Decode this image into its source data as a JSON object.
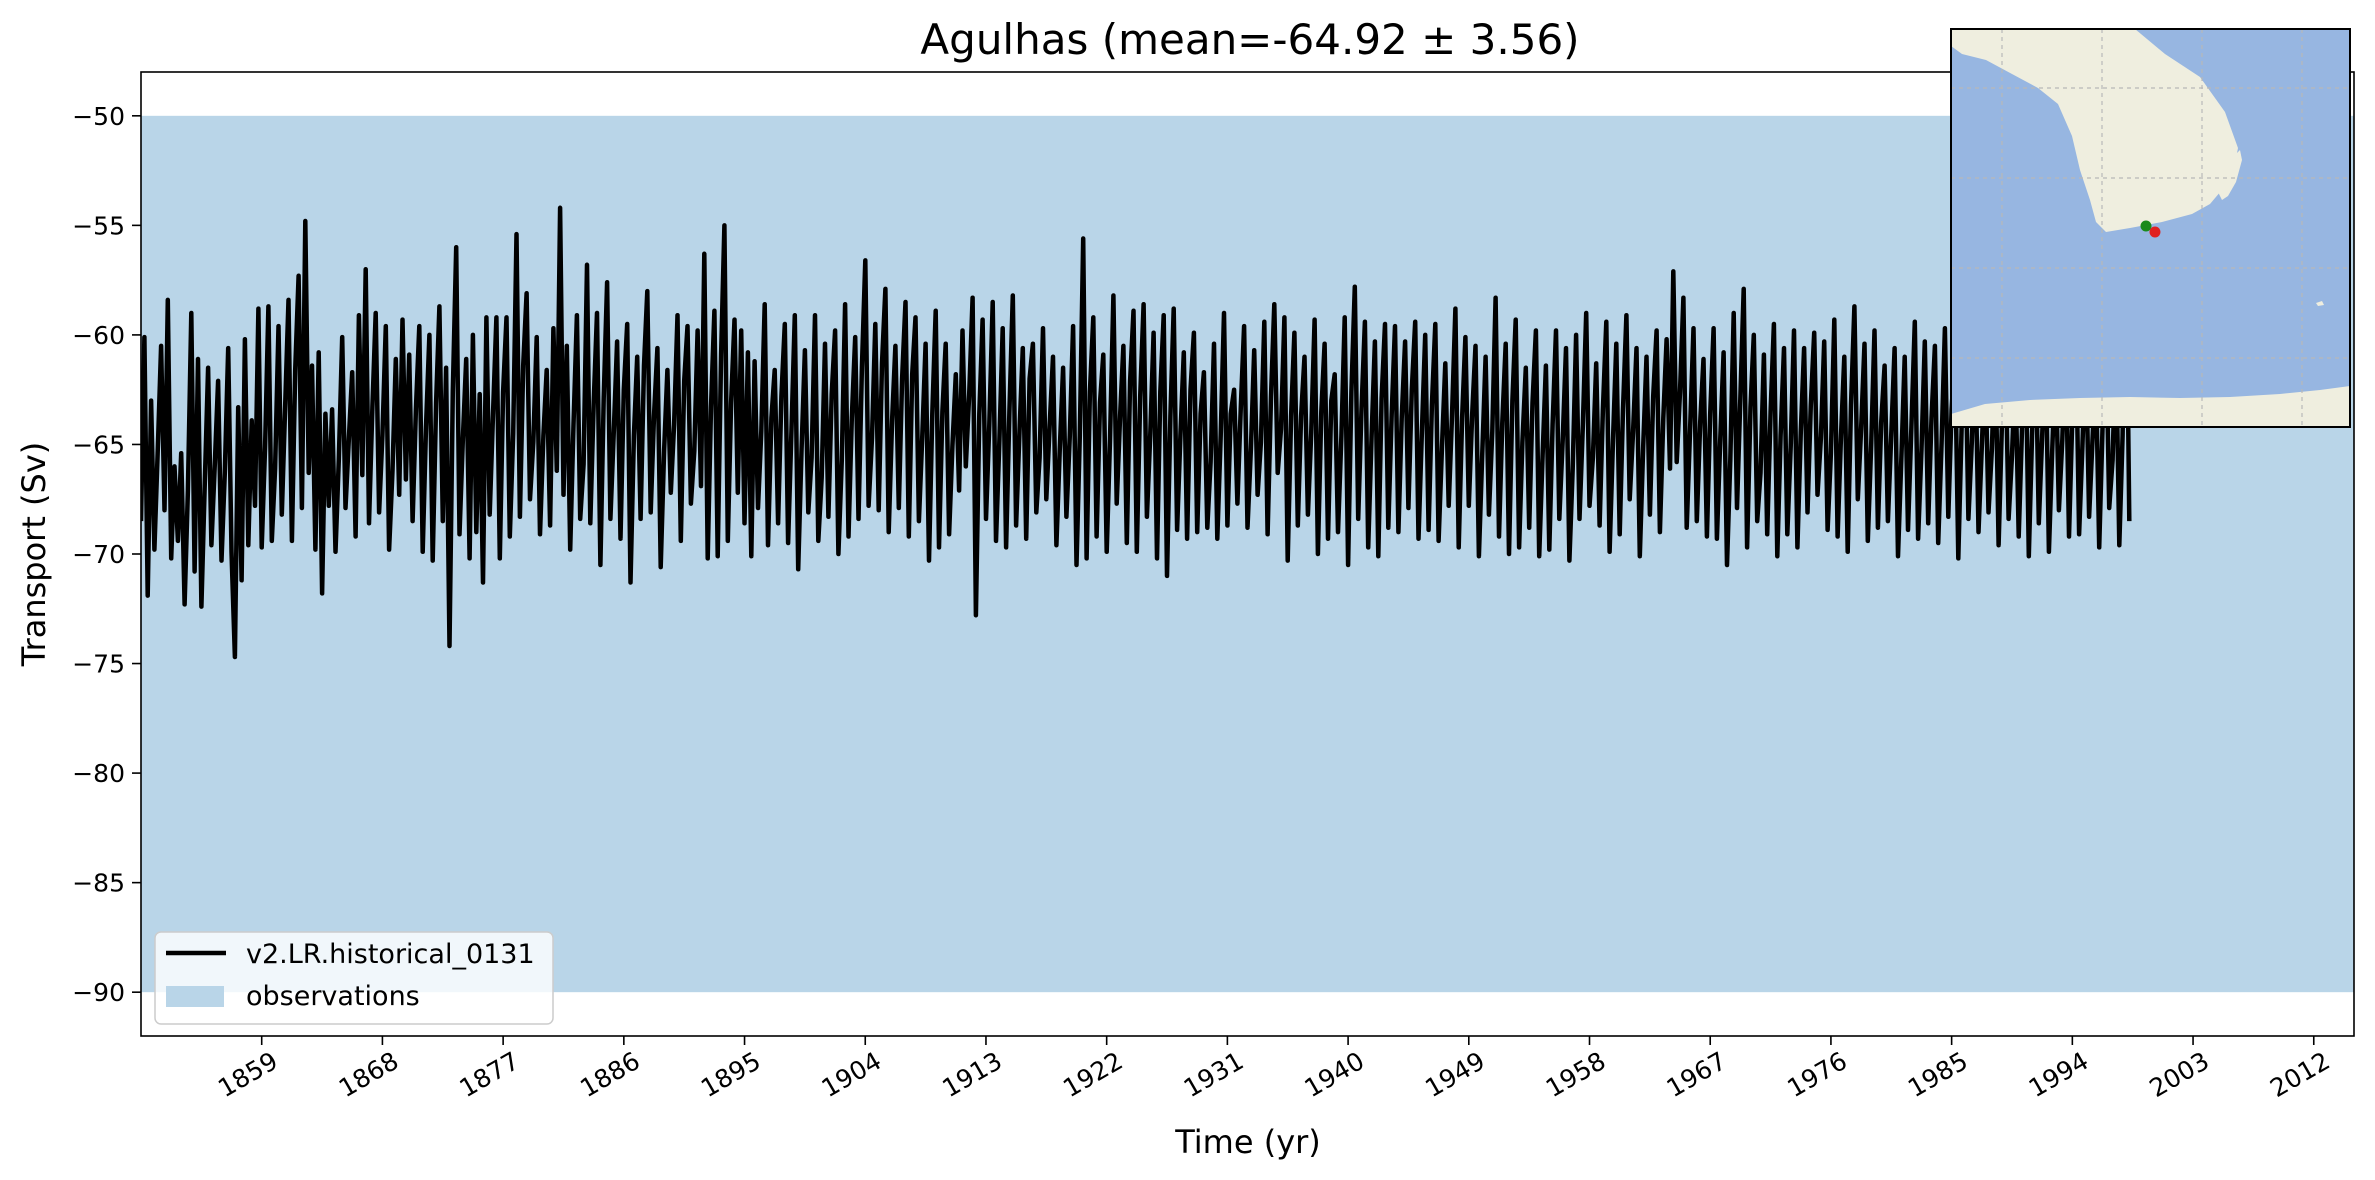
{
  "chart_data": {
    "type": "line",
    "title": "Agulhas (mean=-64.92 ± 3.56)",
    "xlabel": "Time (yr)",
    "ylabel": "Transport (Sv)",
    "xlim": [
      1850,
      2015
    ],
    "ylim": [
      -92,
      -48
    ],
    "x_ticks": [
      1859,
      1868,
      1877,
      1886,
      1895,
      1904,
      1913,
      1922,
      1931,
      1940,
      1949,
      1958,
      1967,
      1976,
      1985,
      1994,
      2003,
      2012
    ],
    "y_ticks": [
      -50,
      -55,
      -60,
      -65,
      -70,
      -75,
      -80,
      -85,
      -90
    ],
    "grid": false,
    "legend_position": "lower-left",
    "observations_band": {
      "label": "observations",
      "y_min": -90,
      "y_max": -50,
      "color": "#b9d5e8"
    },
    "series": [
      {
        "name": "v2.LR.historical_0131",
        "color": "#000000",
        "note_resolution": "monthly model output, shown as sampled approximation",
        "x_start": 1850.0,
        "x_step": 0.25,
        "values": [
          -68.5,
          -60.1,
          -71.9,
          -63.0,
          -69.8,
          -65.2,
          -60.5,
          -68.0,
          -58.4,
          -70.2,
          -66.0,
          -69.4,
          -65.4,
          -72.3,
          -67.1,
          -59.0,
          -70.8,
          -61.1,
          -72.4,
          -66.9,
          -61.5,
          -69.6,
          -65.9,
          -62.1,
          -70.3,
          -66.3,
          -60.6,
          -69.9,
          -74.7,
          -63.3,
          -71.2,
          -60.2,
          -69.6,
          -63.9,
          -67.8,
          -58.8,
          -69.7,
          -65.1,
          -58.7,
          -69.4,
          -66.1,
          -59.6,
          -68.2,
          -63.2,
          -58.4,
          -69.4,
          -61.6,
          -57.3,
          -67.9,
          -54.8,
          -66.3,
          -61.4,
          -69.8,
          -60.8,
          -71.8,
          -63.6,
          -67.8,
          -63.4,
          -69.9,
          -65.7,
          -60.1,
          -67.9,
          -64.7,
          -61.7,
          -69.2,
          -59.1,
          -66.4,
          -57.0,
          -68.6,
          -63.3,
          -59.0,
          -68.1,
          -64.6,
          -59.6,
          -69.8,
          -66.2,
          -61.1,
          -67.3,
          -59.3,
          -66.6,
          -60.9,
          -68.5,
          -63.4,
          -59.6,
          -69.9,
          -64.2,
          -60.0,
          -70.3,
          -63.1,
          -58.7,
          -68.5,
          -61.5,
          -74.2,
          -62.6,
          -56.0,
          -69.1,
          -64.7,
          -61.1,
          -70.2,
          -60.0,
          -69.0,
          -62.7,
          -71.3,
          -59.2,
          -68.2,
          -63.5,
          -59.2,
          -70.2,
          -62.6,
          -59.2,
          -69.2,
          -64.5,
          -55.4,
          -68.3,
          -61.4,
          -58.1,
          -67.5,
          -64.9,
          -60.1,
          -69.1,
          -64.6,
          -61.6,
          -68.7,
          -59.7,
          -66.2,
          -54.2,
          -67.3,
          -60.5,
          -69.8,
          -64.1,
          -59.1,
          -68.4,
          -65.9,
          -56.8,
          -68.6,
          -63.1,
          -59.0,
          -70.5,
          -62.9,
          -57.6,
          -68.4,
          -64.4,
          -60.3,
          -69.3,
          -62.5,
          -59.5,
          -71.3,
          -64.6,
          -61.0,
          -68.4,
          -61.4,
          -58.0,
          -68.1,
          -63.7,
          -60.6,
          -70.6,
          -65.3,
          -61.6,
          -67.2,
          -64.1,
          -59.1,
          -69.4,
          -62.1,
          -59.6,
          -67.7,
          -65.3,
          -59.8,
          -66.9,
          -56.3,
          -70.2,
          -63.3,
          -58.9,
          -70.1,
          -60.9,
          -55.0,
          -69.4,
          -63.1,
          -59.3,
          -67.2,
          -59.8,
          -68.6,
          -60.8,
          -70.1,
          -61.2,
          -67.9,
          -64.4,
          -58.6,
          -69.6,
          -63.8,
          -61.6,
          -68.6,
          -62.8,
          -59.5,
          -69.5,
          -64.3,
          -59.1,
          -70.7,
          -65.3,
          -60.7,
          -68.1,
          -65.6,
          -59.1,
          -69.4,
          -66.5,
          -60.4,
          -68.3,
          -62.7,
          -59.8,
          -70.0,
          -65.7,
          -58.6,
          -69.2,
          -63.8,
          -60.1,
          -68.4,
          -61.5,
          -56.6,
          -67.8,
          -64.7,
          -59.5,
          -68.0,
          -61.3,
          -57.9,
          -69.0,
          -63.9,
          -60.5,
          -67.9,
          -62.0,
          -58.5,
          -69.2,
          -61.8,
          -59.2,
          -68.5,
          -64.6,
          -60.4,
          -70.3,
          -63.6,
          -58.9,
          -69.7,
          -63.5,
          -60.4,
          -69.1,
          -65.1,
          -61.8,
          -67.1,
          -59.8,
          -66.0,
          -62.7,
          -58.3,
          -72.8,
          -63.6,
          -59.3,
          -68.4,
          -64.1,
          -58.5,
          -69.4,
          -64.8,
          -59.7,
          -69.7,
          -63.5,
          -58.2,
          -68.7,
          -64.4,
          -60.6,
          -69.3,
          -62.0,
          -60.4,
          -68.1,
          -65.6,
          -59.7,
          -67.5,
          -64.1,
          -61.0,
          -69.6,
          -65.3,
          -61.5,
          -68.3,
          -64.6,
          -59.6,
          -70.5,
          -64.6,
          -55.6,
          -70.2,
          -62.6,
          -59.2,
          -69.2,
          -63.1,
          -60.9,
          -69.9,
          -64.8,
          -58.2,
          -67.7,
          -63.7,
          -60.5,
          -69.5,
          -62.1,
          -58.9,
          -69.9,
          -62.8,
          -58.6,
          -68.3,
          -64.5,
          -59.9,
          -70.2,
          -62.6,
          -59.1,
          -71.0,
          -63.7,
          -58.8,
          -68.9,
          -64.6,
          -60.8,
          -69.3,
          -62.5,
          -59.9,
          -69.0,
          -63.6,
          -61.7,
          -68.8,
          -65.8,
          -60.4,
          -69.3,
          -64.6,
          -59.0,
          -68.7,
          -63.6,
          -62.5,
          -67.7,
          -63.3,
          -59.6,
          -68.8,
          -65.2,
          -60.7,
          -67.3,
          -64.9,
          -59.4,
          -69.1,
          -62.8,
          -58.6,
          -66.3,
          -64.3,
          -59.2,
          -70.3,
          -63.7,
          -59.9,
          -68.7,
          -63.7,
          -61.0,
          -68.2,
          -64.5,
          -59.3,
          -70.0,
          -63.5,
          -60.4,
          -69.3,
          -63.0,
          -61.8,
          -69.0,
          -64.6,
          -59.2,
          -70.5,
          -62.6,
          -57.8,
          -68.4,
          -63.4,
          -59.4,
          -69.7,
          -64.6,
          -60.3,
          -70.1,
          -62.9,
          -59.5,
          -68.8,
          -63.6,
          -59.6,
          -69.0,
          -63.8,
          -60.3,
          -67.9,
          -62.5,
          -59.4,
          -69.3,
          -64.4,
          -60.0,
          -68.9,
          -63.2,
          -59.5,
          -69.4,
          -65.1,
          -61.3,
          -67.8,
          -63.7,
          -58.8,
          -69.7,
          -63.8,
          -60.1,
          -67.8,
          -63.6,
          -60.5,
          -70.1,
          -65.5,
          -61.0,
          -68.2,
          -64.4,
          -58.3,
          -69.2,
          -64.0,
          -60.4,
          -70.0,
          -63.0,
          -59.3,
          -69.7,
          -64.9,
          -61.5,
          -68.8,
          -63.1,
          -59.8,
          -70.1,
          -65.5,
          -61.4,
          -69.8,
          -64.1,
          -59.8,
          -68.4,
          -64.8,
          -60.6,
          -70.3,
          -66.1,
          -60.0,
          -68.4,
          -64.2,
          -59.0,
          -67.8,
          -65.6,
          -61.3,
          -68.7,
          -63.4,
          -59.4,
          -69.9,
          -64.8,
          -60.4,
          -69.1,
          -63.4,
          -59.1,
          -67.5,
          -64.4,
          -60.6,
          -70.1,
          -65.1,
          -61.0,
          -68.2,
          -62.8,
          -59.8,
          -69.0,
          -63.8,
          -60.2,
          -66.1,
          -57.1,
          -65.8,
          -62.6,
          -58.3,
          -68.8,
          -64.3,
          -59.7,
          -68.5,
          -64.0,
          -61.1,
          -69.2,
          -63.6,
          -59.7,
          -69.3,
          -64.7,
          -60.8,
          -70.5,
          -65.7,
          -59.0,
          -67.9,
          -62.8,
          -57.9,
          -69.7,
          -63.3,
          -60.0,
          -68.5,
          -66.3,
          -60.9,
          -69.1,
          -63.5,
          -59.5,
          -70.1,
          -64.6,
          -60.6,
          -69.1,
          -65.1,
          -59.8,
          -69.7,
          -64.4,
          -60.6,
          -68.1,
          -63.2,
          -59.9,
          -67.3,
          -64.7,
          -60.3,
          -68.9,
          -65.4,
          -59.3,
          -69.2,
          -64.6,
          -61.0,
          -69.9,
          -63.2,
          -58.7,
          -67.5,
          -64.3,
          -60.4,
          -69.4,
          -65.0,
          -59.8,
          -68.8,
          -64.0,
          -61.4,
          -68.5,
          -64.5,
          -60.6,
          -70.1,
          -65.7,
          -61.0,
          -68.9,
          -64.2,
          -59.4,
          -69.3,
          -65.2,
          -60.3,
          -68.6,
          -63.8,
          -60.5,
          -69.5,
          -64.9,
          -59.7,
          -68.3,
          -63.4,
          -60.8,
          -70.2,
          -64.1,
          -59.4,
          -68.4,
          -64.9,
          -60.5,
          -69.0,
          -65.1,
          -61.2,
          -68.1,
          -65.2,
          -60.4,
          -69.6,
          -64.1,
          -60.5,
          -68.4,
          -65.5,
          -61.5,
          -69.2,
          -64.3,
          -59.9,
          -70.1,
          -64.5,
          -60.1,
          -68.6,
          -64.6,
          -60.3,
          -69.9,
          -65.3,
          -61.1,
          -68.0,
          -64.8,
          -60.2,
          -69.2,
          -63.8,
          -59.4,
          -69.1,
          -65.1,
          -60.4,
          -68.3,
          -64.8,
          -61.5,
          -69.7,
          -64.3,
          -59.5,
          -67.9,
          -65.7,
          -60.2,
          -69.6,
          -64.6,
          -55.2,
          -68.5
        ]
      }
    ]
  },
  "inset_map": {
    "land_color": "#efeedf",
    "ocean_color": "#97b6e1",
    "markers": [
      {
        "color": "#1a8a1a",
        "lon": 18.8,
        "lat": -34.6
      },
      {
        "color": "#e02020",
        "lon": 21.0,
        "lat": -35.5
      }
    ]
  }
}
